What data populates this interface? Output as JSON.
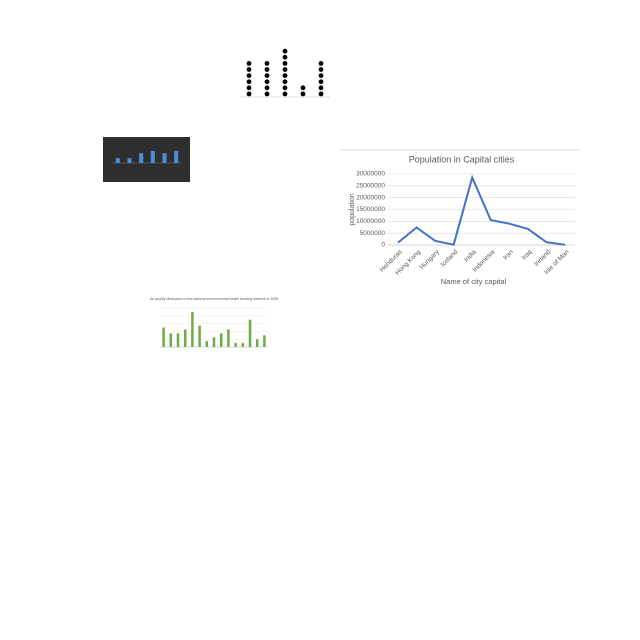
{
  "chart_data": [
    {
      "type": "dot",
      "values": [
        6,
        6,
        8,
        2,
        6
      ],
      "color": "#000000",
      "ylim": [
        0,
        9
      ]
    },
    {
      "type": "bar",
      "values": [
        2,
        2,
        4,
        5,
        4,
        5
      ],
      "color": "#4a8fd8",
      "ylim": [
        0,
        7
      ],
      "background": "#2e2e2e"
    },
    {
      "type": "line",
      "title": "Population in Capital cities",
      "x_label": "Name of city capital",
      "y_label": "population",
      "categories": [
        "Honduras",
        "Hong Kong",
        "Hungary",
        "Iceland",
        "India",
        "Indonesia",
        "Iran",
        "Iraq",
        "Ireland",
        "Isle of Man"
      ],
      "values": [
        1000000,
        7400000,
        1750000,
        130000,
        28500000,
        10500000,
        9000000,
        6800000,
        1200000,
        80000
      ],
      "color": "#4472c4",
      "ylim": [
        0,
        30000000
      ],
      "yticks": [
        0,
        5000000,
        10000000,
        15000000,
        20000000,
        25000000,
        30000000
      ],
      "grid": true
    },
    {
      "type": "bar",
      "title": "Air quality Measures on the national environmental health tracking network in 2008",
      "values": [
        5,
        3.5,
        3.5,
        4.5,
        9,
        5.5,
        1.5,
        2.5,
        3.5,
        4.5,
        1,
        1,
        7,
        2,
        3
      ],
      "color": "#70ad47",
      "ylim": [
        0,
        10
      ],
      "grid": true
    }
  ]
}
